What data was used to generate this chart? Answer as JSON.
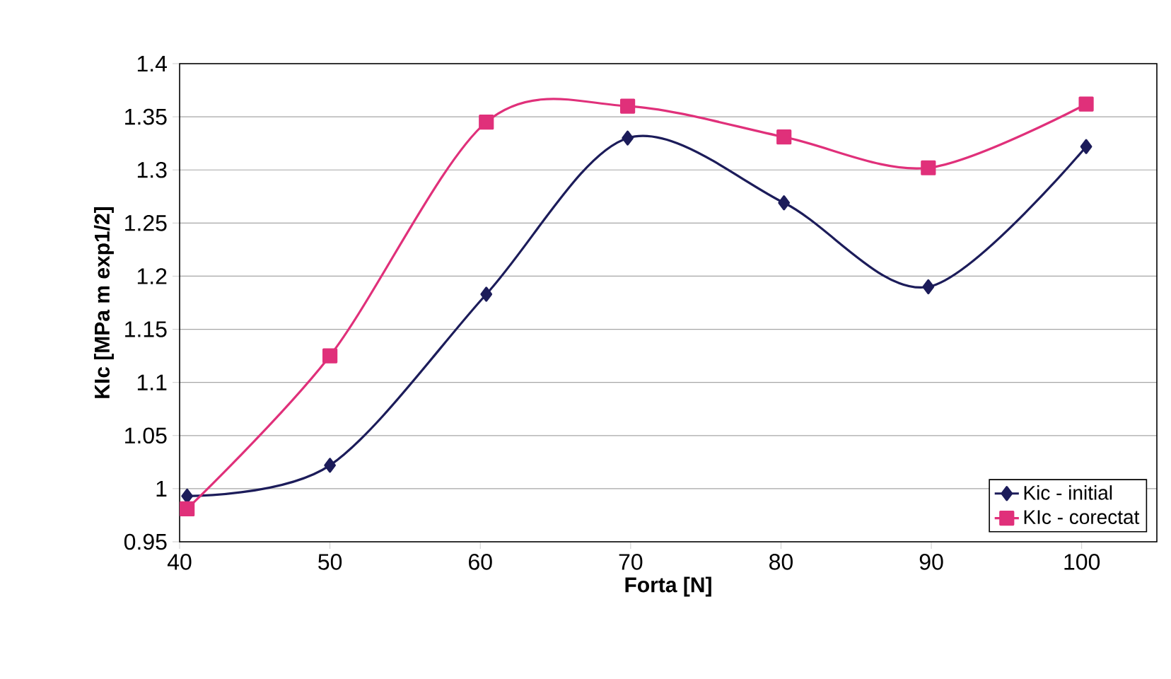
{
  "chart_data": {
    "type": "line",
    "xlabel": "Forta [N]",
    "ylabel": "KIc [MPa m exp1/2]",
    "xlim": [
      40,
      105
    ],
    "xticks": [
      40,
      50,
      60,
      70,
      80,
      90,
      100
    ],
    "ylim": [
      0.95,
      1.4
    ],
    "yticks": [
      0.95,
      1,
      1.05,
      1.1,
      1.15,
      1.2,
      1.25,
      1.3,
      1.35,
      1.4
    ],
    "grid": "y",
    "legend": "bottom right",
    "line_style": "solid",
    "series": [
      {
        "name": "Kic - initial",
        "color": "#1c1c5a",
        "marker": "diamond",
        "x": [
          40.5,
          50,
          60.4,
          69.8,
          80.2,
          89.8,
          100.3
        ],
        "values": [
          0.993,
          1.022,
          1.183,
          1.33,
          1.269,
          1.19,
          1.322
        ]
      },
      {
        "name": "KIc - corectat",
        "color": "#e0307a",
        "marker": "square",
        "x": [
          40.5,
          50,
          60.4,
          69.8,
          80.2,
          89.8,
          100.3
        ],
        "values": [
          0.981,
          1.125,
          1.345,
          1.36,
          1.331,
          1.302,
          1.362
        ]
      }
    ]
  }
}
